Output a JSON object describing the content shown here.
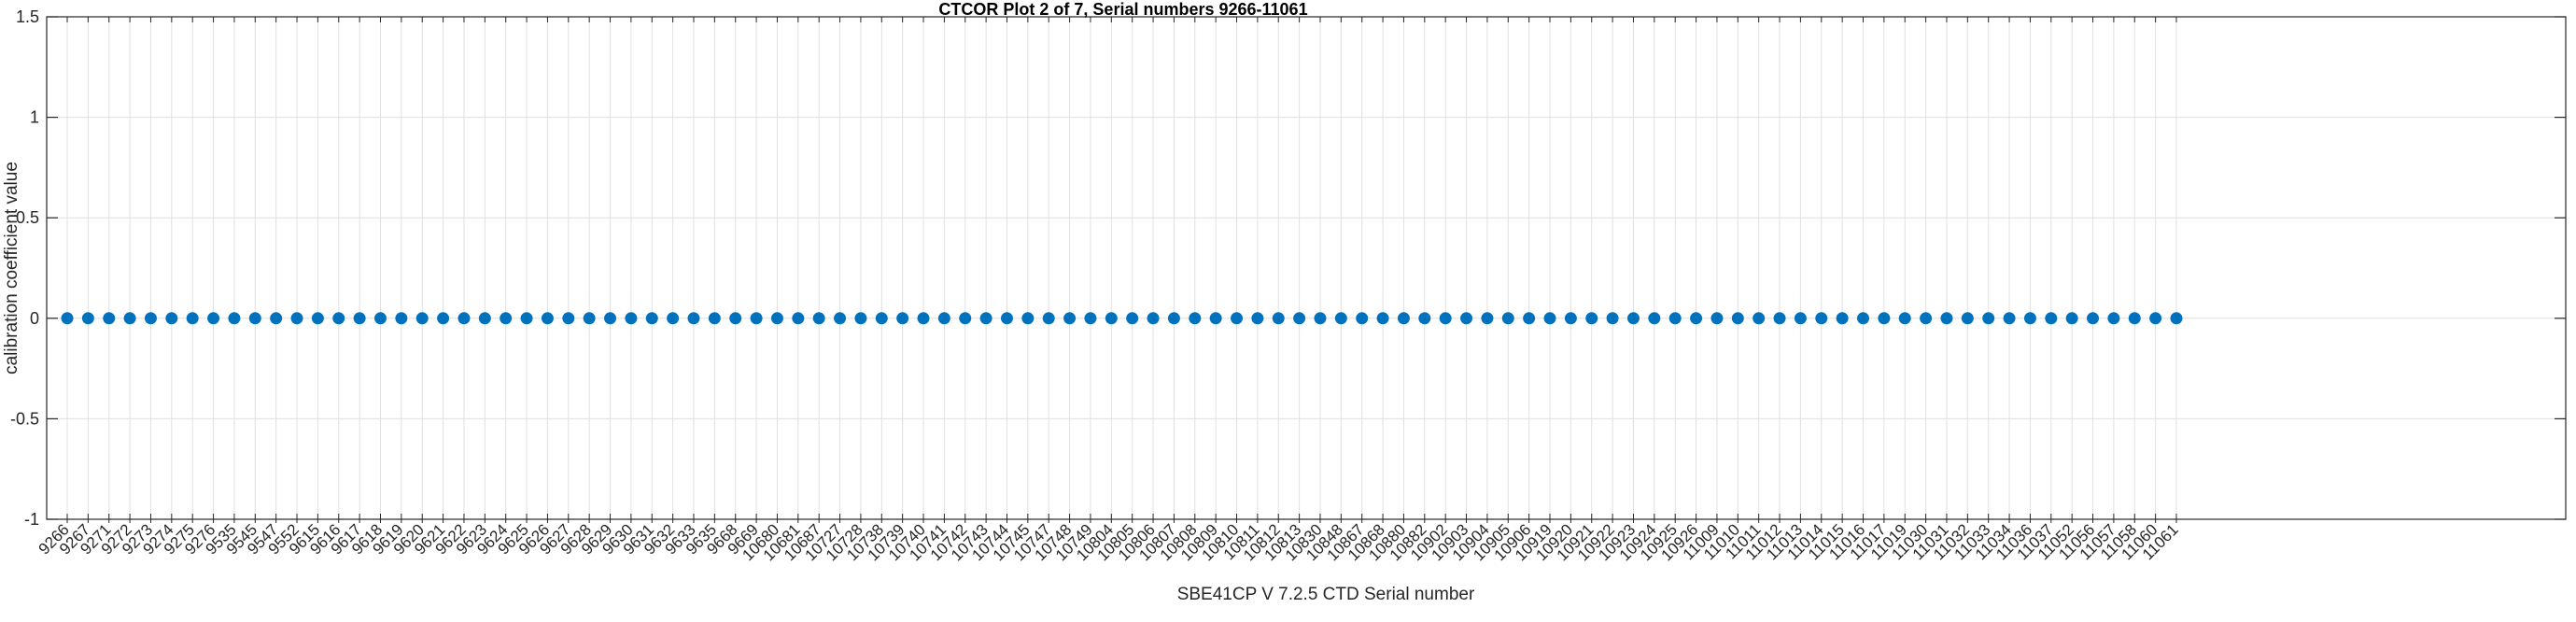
{
  "figure_title": "CTCOR Plot 2 of 7, Serial numbers 9266-11061",
  "chart_data": {
    "type": "scatter",
    "title": "CTCOR Plot 2 of 7, Serial numbers 9266-11061",
    "xlabel": "SBE41CP V 7.2.5 CTD Serial number",
    "ylabel": "calibration coefficient value",
    "ylim": [
      -1,
      1.5
    ],
    "yticks": [
      -1,
      -0.5,
      0,
      0.5,
      1,
      1.5
    ],
    "ytick_labels": [
      "-1",
      "-0.5",
      "0",
      "0.5",
      "1",
      "1.5"
    ],
    "grid": true,
    "legend": "none",
    "marker": "filled-circle",
    "marker_color": "#0072bd",
    "x_tick_label_rotation_deg": 45,
    "categories": [
      "9266",
      "9267",
      "9271",
      "9272",
      "9273",
      "9274",
      "9275",
      "9276",
      "9535",
      "9545",
      "9547",
      "9552",
      "9615",
      "9616",
      "9617",
      "9618",
      "9619",
      "9620",
      "9621",
      "9622",
      "9623",
      "9624",
      "9625",
      "9626",
      "9627",
      "9628",
      "9629",
      "9630",
      "9631",
      "9632",
      "9633",
      "9635",
      "9668",
      "9669",
      "10680",
      "10681",
      "10687",
      "10727",
      "10728",
      "10738",
      "10739",
      "10740",
      "10741",
      "10742",
      "10743",
      "10744",
      "10745",
      "10747",
      "10748",
      "10749",
      "10804",
      "10805",
      "10806",
      "10807",
      "10808",
      "10809",
      "10810",
      "10811",
      "10812",
      "10813",
      "10830",
      "10848",
      "10867",
      "10868",
      "10880",
      "10882",
      "10902",
      "10903",
      "10904",
      "10905",
      "10906",
      "10919",
      "10920",
      "10921",
      "10922",
      "10923",
      "10924",
      "10925",
      "10926",
      "11009",
      "11010",
      "11011",
      "11012",
      "11013",
      "11014",
      "11015",
      "11016",
      "11017",
      "11019",
      "11030",
      "11031",
      "11032",
      "11033",
      "11034",
      "11036",
      "11037",
      "11052",
      "11056",
      "11057",
      "11058",
      "11060",
      "11061"
    ],
    "values": [
      0,
      0,
      0,
      0,
      0,
      0,
      0,
      0,
      0,
      0,
      0,
      0,
      0,
      0,
      0,
      0,
      0,
      0,
      0,
      0,
      0,
      0,
      0,
      0,
      0,
      0,
      0,
      0,
      0,
      0,
      0,
      0,
      0,
      0,
      0,
      0,
      0,
      0,
      0,
      0,
      0,
      0,
      0,
      0,
      0,
      0,
      0,
      0,
      0,
      0,
      0,
      0,
      0,
      0,
      0,
      0,
      0,
      0,
      0,
      0,
      0,
      0,
      0,
      0,
      0,
      0,
      0,
      0,
      0,
      0,
      0,
      0,
      0,
      0,
      0,
      0,
      0,
      0,
      0,
      0,
      0,
      0,
      0,
      0,
      0,
      0,
      0,
      0,
      0,
      0,
      0,
      0,
      0,
      0,
      0,
      0,
      0,
      0,
      0,
      0,
      0,
      0
    ],
    "colors": {
      "marker": "#0072bd",
      "grid": "#e0e0e0",
      "axis": "#262626",
      "tick_text": "#262626",
      "title_text": "#000000"
    }
  }
}
